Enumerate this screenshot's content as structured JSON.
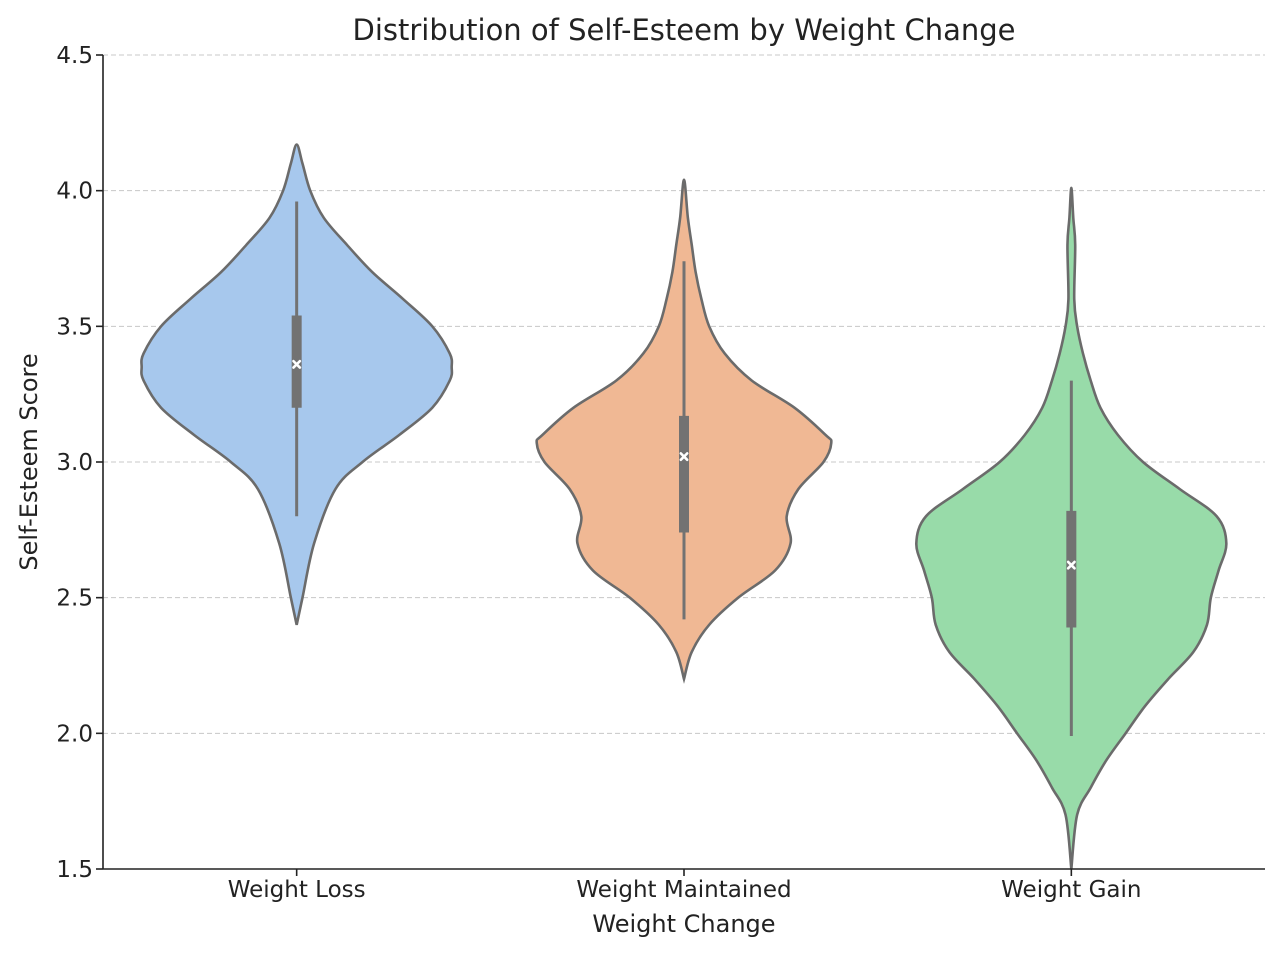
{
  "chart_data": {
    "type": "violin",
    "title": "Distribution of Self-Esteem by Weight Change",
    "xlabel": "Weight Change",
    "ylabel": "Self-Esteem Score",
    "ylim": [
      1.5,
      4.5
    ],
    "yticks": [
      "1.5",
      "2.0",
      "2.5",
      "3.0",
      "3.5",
      "4.0",
      "4.5"
    ],
    "grid": "horizontal dashed",
    "categories": [
      "Weight Loss",
      "Weight Maintained",
      "Weight Gain"
    ],
    "colors": [
      "#a7c8ed",
      "#f0b894",
      "#98dba9"
    ],
    "series": [
      {
        "category": "Weight Loss",
        "min": 2.8,
        "q1": 3.2,
        "median": 3.36,
        "q3": 3.54,
        "max": 3.96,
        "kde_min": 2.4,
        "kde_max": 4.17,
        "density": [
          [
            2.4,
            0.0
          ],
          [
            2.5,
            0.3
          ],
          [
            2.7,
            0.9
          ],
          [
            2.9,
            2.0
          ],
          [
            3.0,
            3.4
          ],
          [
            3.1,
            5.3
          ],
          [
            3.2,
            7.0
          ],
          [
            3.3,
            7.9
          ],
          [
            3.35,
            8.0
          ],
          [
            3.4,
            7.9
          ],
          [
            3.5,
            7.0
          ],
          [
            3.6,
            5.5
          ],
          [
            3.7,
            3.9
          ],
          [
            3.8,
            2.6
          ],
          [
            3.9,
            1.4
          ],
          [
            4.0,
            0.7
          ],
          [
            4.1,
            0.3
          ],
          [
            4.17,
            0.0
          ]
        ]
      },
      {
        "category": "Weight Maintained",
        "min": 2.42,
        "q1": 2.74,
        "median": 3.02,
        "q3": 3.17,
        "max": 3.74,
        "kde_min": 2.2,
        "kde_max": 4.04,
        "density": [
          [
            2.2,
            0.0
          ],
          [
            2.3,
            0.4
          ],
          [
            2.4,
            1.3
          ],
          [
            2.5,
            2.8
          ],
          [
            2.6,
            4.7
          ],
          [
            2.7,
            5.5
          ],
          [
            2.8,
            5.3
          ],
          [
            2.9,
            5.9
          ],
          [
            3.0,
            7.2
          ],
          [
            3.07,
            7.6
          ],
          [
            3.1,
            7.3
          ],
          [
            3.2,
            5.7
          ],
          [
            3.3,
            3.5
          ],
          [
            3.4,
            2.1
          ],
          [
            3.5,
            1.3
          ],
          [
            3.6,
            0.9
          ],
          [
            3.7,
            0.6
          ],
          [
            3.8,
            0.4
          ],
          [
            3.9,
            0.2
          ],
          [
            4.04,
            0.0
          ]
        ]
      },
      {
        "category": "Weight Gain",
        "min": 1.99,
        "q1": 2.39,
        "median": 2.62,
        "q3": 2.82,
        "max": 3.3,
        "kde_min": 1.5,
        "kde_max": 4.01,
        "density": [
          [
            1.5,
            0.0
          ],
          [
            1.7,
            0.3
          ],
          [
            1.8,
            1.0
          ],
          [
            1.9,
            1.8
          ],
          [
            2.0,
            2.8
          ],
          [
            2.1,
            3.8
          ],
          [
            2.2,
            5.0
          ],
          [
            2.3,
            6.3
          ],
          [
            2.4,
            7.0
          ],
          [
            2.5,
            7.2
          ],
          [
            2.6,
            7.6
          ],
          [
            2.7,
            8.0
          ],
          [
            2.8,
            7.5
          ],
          [
            2.9,
            5.6
          ],
          [
            3.0,
            3.7
          ],
          [
            3.1,
            2.4
          ],
          [
            3.2,
            1.5
          ],
          [
            3.3,
            1.0
          ],
          [
            3.4,
            0.6
          ],
          [
            3.5,
            0.3
          ],
          [
            3.6,
            0.15
          ],
          [
            3.8,
            0.2
          ],
          [
            3.9,
            0.1
          ],
          [
            4.01,
            0.0
          ]
        ]
      }
    ]
  }
}
